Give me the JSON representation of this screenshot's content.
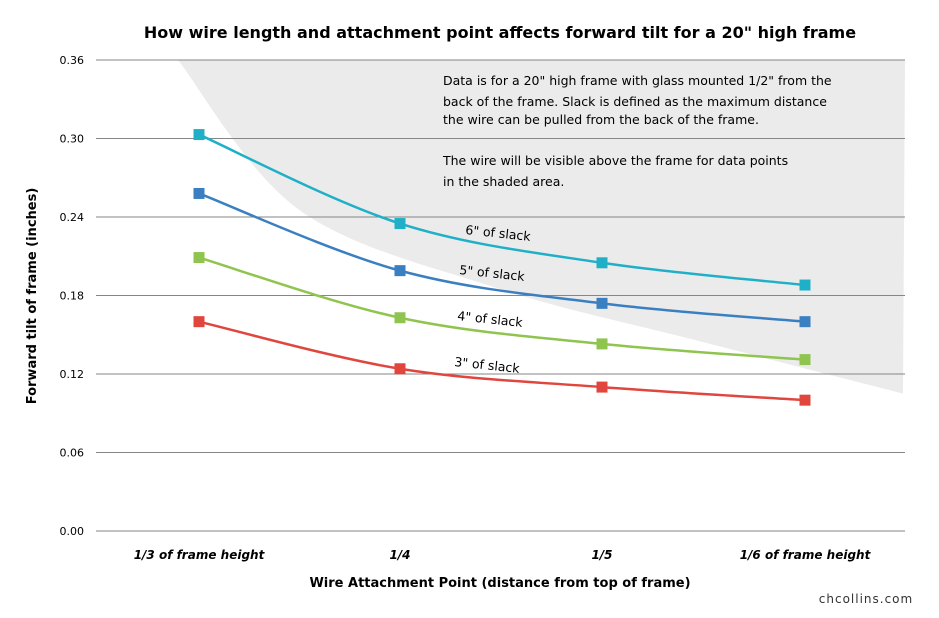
{
  "chart_data": {
    "type": "line",
    "title": "How wire length and attachment point affects forward tilt for a 20\" high frame",
    "xlabel": "Wire Attachment Point (distance from top of frame)",
    "ylabel": "Forward tilt of frame (inches)",
    "categories": [
      "1/3 of frame height",
      "1/4",
      "1/5",
      "1/6 of frame height"
    ],
    "ylim": [
      0,
      0.36
    ],
    "yticks": [
      "0.00",
      "0.06",
      "0.12",
      "0.18",
      "0.24",
      "0.30",
      "0.36"
    ],
    "grid": true,
    "series": [
      {
        "name": "6\" of slack",
        "color": "#1fb0c8",
        "values": [
          0.303,
          0.235,
          0.205,
          0.188
        ]
      },
      {
        "name": "5\" of slack",
        "color": "#3a7fc1",
        "values": [
          0.258,
          0.199,
          0.174,
          0.16
        ]
      },
      {
        "name": "4\" of slack",
        "color": "#8fc44f",
        "values": [
          0.209,
          0.163,
          0.143,
          0.131
        ]
      },
      {
        "name": "3\" of slack",
        "color": "#e0463e",
        "values": [
          0.16,
          0.124,
          0.11,
          0.1
        ]
      }
    ],
    "shaded_region_boundary": [
      0.36,
      0.245,
      0.185,
      0.145,
      0.105
    ],
    "shading_color": "#ebebeb",
    "annotations": [
      "Data is for a 20\" high frame with glass mounted 1/2\" from the",
      "back of the frame.  Slack is defined as the maximum distance",
      "the wire can be pulled from the back of the frame.",
      "The wire will be visible above the frame for data points",
      "in the shaded area."
    ],
    "credit": "chcollins.com"
  }
}
